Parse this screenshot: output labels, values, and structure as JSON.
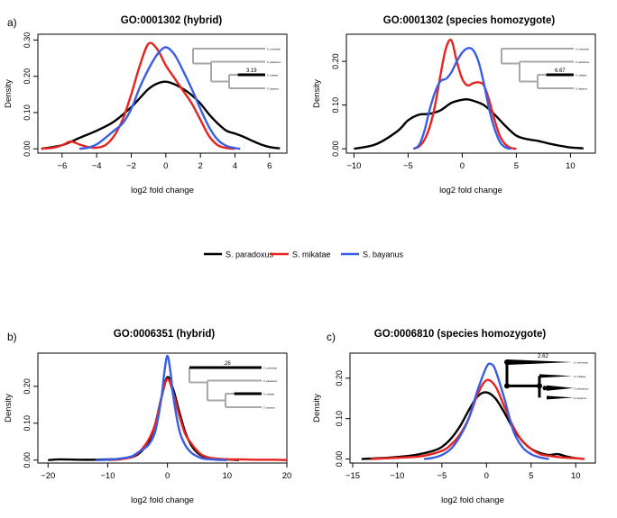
{
  "legend": {
    "placement": "center",
    "items": [
      {
        "name": "S. paradoxus",
        "color": "#000000"
      },
      {
        "name": "S. mikatae",
        "color": "#e8231f"
      },
      {
        "name": "S. bayanus",
        "color": "#3a5ee3"
      }
    ]
  },
  "chart_data": [
    {
      "type": "line",
      "panel_label": "a)",
      "title": "GO:0001302 (hybrid)",
      "xlabel": "log2 fold change",
      "ylabel": "Density",
      "xlim": [
        -7.4,
        7.0
      ],
      "ylim": [
        -0.012,
        0.316
      ],
      "xticks": [
        -6,
        -4,
        -2,
        0,
        2,
        4,
        6
      ],
      "yticks": [
        0.0,
        0.1,
        0.2,
        0.3
      ],
      "ytick_labels": [
        "0.00",
        "0.10",
        "0.20",
        "0.30"
      ],
      "series": [
        {
          "name": "S. paradoxus",
          "color": "#000000",
          "x": [
            -7.2,
            -6,
            -5,
            -4,
            -3,
            -2,
            -1.5,
            -1,
            -0.5,
            0,
            0.5,
            1,
            1.5,
            2,
            2.5,
            3,
            3.5,
            4,
            4.5,
            5,
            5.5,
            6,
            6.6
          ],
          "y": [
            0.0,
            0.01,
            0.03,
            0.05,
            0.075,
            0.115,
            0.14,
            0.165,
            0.18,
            0.185,
            0.178,
            0.165,
            0.148,
            0.125,
            0.095,
            0.07,
            0.05,
            0.042,
            0.033,
            0.022,
            0.012,
            0.005,
            0.001
          ]
        },
        {
          "name": "S. mikatae",
          "color": "#e8231f",
          "x": [
            -7.2,
            -6.5,
            -6,
            -5.5,
            -5,
            -4.5,
            -4,
            -3.5,
            -3,
            -2.5,
            -2,
            -1.5,
            -1,
            -0.5,
            0,
            0.5,
            1,
            1.5,
            2,
            2.5,
            3,
            3.5,
            4
          ],
          "y": [
            0.0,
            0.003,
            0.01,
            0.02,
            0.012,
            0.005,
            0.003,
            0.01,
            0.035,
            0.08,
            0.15,
            0.23,
            0.29,
            0.275,
            0.23,
            0.195,
            0.16,
            0.125,
            0.08,
            0.035,
            0.01,
            0.002,
            0.0
          ]
        },
        {
          "name": "S. bayanus",
          "color": "#3a5ee3",
          "x": [
            -5.0,
            -4.5,
            -4,
            -3.5,
            -3,
            -2.5,
            -2,
            -1.5,
            -1,
            -0.5,
            0,
            0.5,
            1,
            1.5,
            2,
            2.5,
            3,
            3.5,
            4,
            4.3
          ],
          "y": [
            0.0,
            0.003,
            0.012,
            0.03,
            0.05,
            0.07,
            0.11,
            0.17,
            0.22,
            0.26,
            0.28,
            0.26,
            0.215,
            0.165,
            0.11,
            0.06,
            0.025,
            0.008,
            0.002,
            0.0
          ]
        }
      ],
      "inset_tree": {
        "style": "lines",
        "branch_label": "3.19",
        "tips": [
          "S. cerevisiae",
          "S. paradoxus",
          "S. mikatae",
          "S. bayanus"
        ]
      }
    },
    {
      "type": "line",
      "panel_label": "",
      "title": "GO:0001302 (species homozygote)",
      "xlabel": "log2 fold change",
      "ylabel": "Density",
      "xlim": [
        -10.7,
        12.3
      ],
      "ylim": [
        -0.01,
        0.262
      ],
      "xticks": [
        -10,
        -5,
        0,
        5,
        10
      ],
      "yticks": [
        0.0,
        0.1,
        0.2
      ],
      "ytick_labels": [
        "0.00",
        "0.10",
        "0.20"
      ],
      "series": [
        {
          "name": "S. paradoxus",
          "color": "#000000",
          "x": [
            -10,
            -8,
            -6,
            -5,
            -4,
            -3,
            -2,
            -1,
            0,
            0.5,
            1,
            2,
            3,
            4,
            5,
            6,
            7,
            8,
            9,
            10,
            11.2
          ],
          "y": [
            0.0,
            0.01,
            0.04,
            0.065,
            0.078,
            0.08,
            0.088,
            0.105,
            0.112,
            0.113,
            0.11,
            0.1,
            0.078,
            0.052,
            0.03,
            0.022,
            0.018,
            0.012,
            0.007,
            0.003,
            0.001
          ]
        },
        {
          "name": "S. mikatae",
          "color": "#e8231f",
          "x": [
            -4.5,
            -4,
            -3.5,
            -3,
            -2.5,
            -2,
            -1.5,
            -1,
            -0.5,
            0,
            0.5,
            1,
            1.5,
            2,
            2.5,
            3,
            3.5,
            4,
            4.5,
            5
          ],
          "y": [
            0.0,
            0.005,
            0.02,
            0.05,
            0.1,
            0.17,
            0.23,
            0.248,
            0.2,
            0.16,
            0.145,
            0.15,
            0.152,
            0.145,
            0.11,
            0.065,
            0.028,
            0.01,
            0.002,
            0.0
          ]
        },
        {
          "name": "S. bayanus",
          "color": "#3a5ee3",
          "x": [
            -4.5,
            -4,
            -3.5,
            -3,
            -2.5,
            -2,
            -1.5,
            -1,
            -0.5,
            0,
            0.5,
            1,
            1.5,
            2,
            2.5,
            3,
            3.5,
            4,
            4.5
          ],
          "y": [
            0.0,
            0.008,
            0.04,
            0.09,
            0.13,
            0.155,
            0.16,
            0.175,
            0.2,
            0.22,
            0.23,
            0.226,
            0.2,
            0.15,
            0.09,
            0.045,
            0.015,
            0.003,
            0.0
          ]
        }
      ],
      "inset_tree": {
        "style": "lines",
        "branch_label": "6.67",
        "tips": [
          "S. cerevisiae",
          "S. paradoxus",
          "S. mikatae",
          "S. bayanus"
        ]
      }
    },
    {
      "type": "line",
      "panel_label": "b)",
      "title": "GO:0006351 (hybrid)",
      "xlabel": "log2 fold change",
      "ylabel": "Density",
      "xlim": [
        -21.7,
        20.0
      ],
      "ylim": [
        -0.008,
        0.29
      ],
      "xticks": [
        -20,
        -10,
        0,
        10,
        20
      ],
      "yticks": [
        0.0,
        0.1,
        0.2
      ],
      "ytick_labels": [
        "0.00",
        "0.10",
        "0.20"
      ],
      "series": [
        {
          "name": "S. paradoxus",
          "color": "#000000",
          "x": [
            -20,
            -18,
            -15,
            -12,
            -10,
            -8,
            -6,
            -5,
            -4,
            -3,
            -2,
            -1,
            0,
            1,
            2,
            3,
            4,
            5,
            6,
            8,
            10,
            12
          ],
          "y": [
            0.0,
            0.002,
            0.001,
            0.001,
            0.002,
            0.003,
            0.008,
            0.015,
            0.03,
            0.055,
            0.1,
            0.17,
            0.225,
            0.19,
            0.13,
            0.075,
            0.04,
            0.02,
            0.01,
            0.004,
            0.002,
            0.0
          ]
        },
        {
          "name": "S. mikatae",
          "color": "#e8231f",
          "x": [
            -10,
            -8,
            -6,
            -5,
            -4,
            -3,
            -2,
            -1,
            0,
            1,
            2,
            3,
            4,
            5,
            6,
            8,
            10,
            12,
            15,
            18,
            20
          ],
          "y": [
            0.0,
            0.002,
            0.008,
            0.018,
            0.035,
            0.06,
            0.1,
            0.17,
            0.22,
            0.18,
            0.12,
            0.07,
            0.045,
            0.025,
            0.012,
            0.004,
            0.002,
            0.002,
            0.001,
            0.001,
            0.0
          ]
        },
        {
          "name": "S. bayanus",
          "color": "#3a5ee3",
          "x": [
            -12,
            -10,
            -8,
            -6,
            -5,
            -4,
            -3,
            -2,
            -1,
            -0.5,
            0,
            0.5,
            1,
            2,
            3,
            4,
            5,
            6,
            8,
            10
          ],
          "y": [
            0.0,
            0.001,
            0.004,
            0.01,
            0.02,
            0.03,
            0.045,
            0.08,
            0.17,
            0.24,
            0.283,
            0.24,
            0.17,
            0.08,
            0.04,
            0.02,
            0.01,
            0.004,
            0.001,
            0.0
          ]
        }
      ],
      "inset_tree": {
        "style": "lines",
        "branch_label": ".26",
        "tips": [
          "S. cerevisiae",
          "S. paradoxus",
          "S. mikatae",
          "S. bayanus"
        ]
      }
    },
    {
      "type": "line",
      "panel_label": "c)",
      "title": "GO:0006810 (species homozygote)",
      "xlabel": "log2 fold change",
      "ylabel": "Density",
      "xlim": [
        -15.3,
        12.2
      ],
      "ylim": [
        -0.01,
        0.262
      ],
      "xticks": [
        -15,
        -10,
        -5,
        0,
        5,
        10
      ],
      "yticks": [
        0.0,
        0.1,
        0.2
      ],
      "ytick_labels": [
        "0.00",
        "0.10",
        "0.20"
      ],
      "series": [
        {
          "name": "S. paradoxus",
          "color": "#000000",
          "x": [
            -14,
            -12,
            -10,
            -8,
            -6,
            -5,
            -4,
            -3,
            -2,
            -1,
            0,
            1,
            2,
            3,
            4,
            5,
            6,
            7,
            8,
            9,
            10
          ],
          "y": [
            0.0,
            0.002,
            0.005,
            0.01,
            0.02,
            0.03,
            0.05,
            0.08,
            0.12,
            0.155,
            0.165,
            0.15,
            0.115,
            0.075,
            0.045,
            0.025,
            0.015,
            0.01,
            0.012,
            0.006,
            0.002
          ]
        },
        {
          "name": "S. mikatae",
          "color": "#e8231f",
          "x": [
            -13,
            -11,
            -9,
            -7,
            -5,
            -4,
            -3,
            -2,
            -1,
            0,
            1,
            2,
            3,
            4,
            5,
            6,
            7,
            8,
            9,
            10,
            11
          ],
          "y": [
            0.0,
            0.002,
            0.004,
            0.008,
            0.02,
            0.035,
            0.06,
            0.1,
            0.16,
            0.195,
            0.18,
            0.13,
            0.08,
            0.045,
            0.025,
            0.012,
            0.008,
            0.005,
            0.003,
            0.002,
            0.0
          ]
        },
        {
          "name": "S. bayanus",
          "color": "#3a5ee3",
          "x": [
            -7,
            -6,
            -5,
            -4,
            -3,
            -2,
            -1,
            0,
            0.5,
            1,
            2,
            3,
            4,
            5,
            6,
            7
          ],
          "y": [
            0.0,
            0.003,
            0.01,
            0.025,
            0.055,
            0.1,
            0.17,
            0.228,
            0.235,
            0.22,
            0.15,
            0.07,
            0.03,
            0.012,
            0.004,
            0.0
          ]
        }
      ],
      "inset_tree": {
        "style": "wedges",
        "branch_label": "2.62",
        "tips": [
          "S. cerevisiae",
          "S. mikatae",
          "S. paradoxus",
          "S. bayanus"
        ]
      }
    }
  ]
}
